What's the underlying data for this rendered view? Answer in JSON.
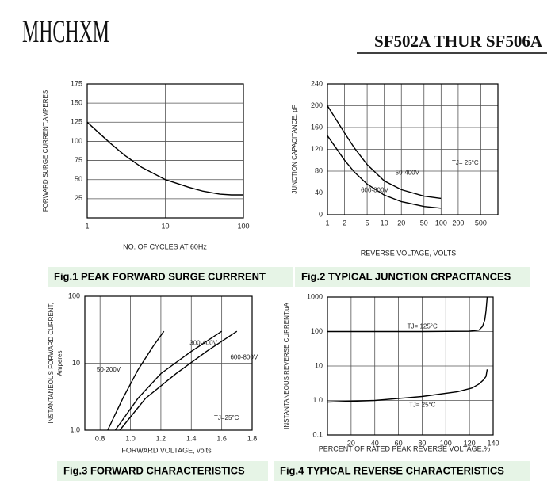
{
  "header": {
    "brand": "MHCHXM",
    "part": "SF502A THUR SF506A"
  },
  "chart_data": [
    {
      "type": "line",
      "title": "Fig.1 PEAK FORWARD SURGE CURRRENT",
      "xlabel": "NO. OF CYCLES AT 60Hz",
      "ylabel": [
        "FORWARD SURGE CURRENT,AMPERES"
      ],
      "xscale": "log",
      "yscale": "linear",
      "xlim": [
        1,
        100
      ],
      "ylim": [
        0,
        175
      ],
      "xticks": [
        1,
        10,
        100
      ],
      "yticks": [
        25,
        50,
        75,
        100,
        125,
        150,
        175
      ],
      "grid": true,
      "series": [
        {
          "x": [
            1,
            2,
            3,
            5,
            10,
            20,
            30,
            50,
            70,
            100
          ],
          "values": [
            125,
            97,
            82,
            66,
            50,
            40,
            35,
            31,
            30,
            30
          ],
          "color": "#000000"
        }
      ]
    },
    {
      "type": "line",
      "title": "Fig.2 TYPICAL JUNCTION CRPACITANCES",
      "xlabel": "REVERSE VOLTAGE, VOLTS",
      "ylabel": [
        "JUNCTION CAPACITANCE, pF"
      ],
      "xscale": "log",
      "yscale": "linear",
      "xlim": [
        1,
        1000
      ],
      "ylim": [
        0,
        240
      ],
      "xticks": [
        1,
        2,
        5,
        10,
        20,
        50,
        100,
        200,
        500
      ],
      "yticks": [
        0,
        40,
        80,
        120,
        160,
        200,
        240
      ],
      "grid": true,
      "annotations": [
        "TJ= 25°C"
      ],
      "series": [
        {
          "name": "50-400V",
          "x": [
            1,
            2,
            3,
            5,
            10,
            20,
            50,
            100
          ],
          "values": [
            200,
            150,
            122,
            92,
            62,
            46,
            34,
            30
          ],
          "color": "#000000"
        },
        {
          "name": "600-800V",
          "x": [
            1,
            2,
            3,
            5,
            10,
            20,
            50,
            100
          ],
          "values": [
            145,
            100,
            78,
            56,
            36,
            24,
            15,
            12
          ],
          "color": "#000000"
        }
      ]
    },
    {
      "type": "line",
      "title": "Fig.3 FORWARD  CHARACTERISTICS",
      "xlabel": "FORWARD VOLTAGE, volts",
      "ylabel": [
        "INSTANTANEOUS FORWARD CURRENT,",
        "Amperes"
      ],
      "xscale": "linear",
      "yscale": "log",
      "xlim": [
        0.7,
        1.8
      ],
      "ylim": [
        1,
        100
      ],
      "xticks": [
        0.8,
        {
          "value": 1,
          "label": "1.0"
        },
        1.2,
        1.4,
        1.6,
        1.8
      ],
      "yticks": [
        {
          "value": 1,
          "label": "1.0"
        },
        10,
        100
      ],
      "grid": true,
      "annotations": [
        "TJ=25°C"
      ],
      "series": [
        {
          "name": "50-200V",
          "x": [
            0.85,
            0.95,
            1.05,
            1.15,
            1.22
          ],
          "values": [
            1,
            3,
            8,
            18,
            30
          ],
          "color": "#000000"
        },
        {
          "name": "300-400V",
          "x": [
            0.9,
            1.05,
            1.2,
            1.4,
            1.6
          ],
          "values": [
            1,
            3,
            7,
            15,
            30
          ],
          "color": "#000000"
        },
        {
          "name": "600-800V",
          "x": [
            0.93,
            1.1,
            1.3,
            1.5,
            1.7
          ],
          "values": [
            1,
            3,
            7,
            15,
            30
          ],
          "color": "#000000"
        }
      ]
    },
    {
      "type": "line",
      "title": "Fig.4 TYPICAL REVERSE CHARACTERISTICS",
      "xlabel": "PERCENT OF RATED PEAK REVERSE VOLTAGE,%",
      "ylabel": [
        "INSTANTANEOUS REVERSE CURRENT,uA"
      ],
      "xscale": "linear",
      "yscale": "log",
      "xlim": [
        0,
        140
      ],
      "ylim": [
        0.1,
        1000
      ],
      "xticks": [
        20,
        40,
        60,
        80,
        100,
        120,
        140
      ],
      "yticks": [
        0.1,
        {
          "value": 1,
          "label": "1.0"
        },
        10,
        100,
        1000
      ],
      "grid": true,
      "series": [
        {
          "name": "TJ= 125°C",
          "x": [
            0,
            40,
            80,
            120,
            128,
            131,
            133,
            134,
            135
          ],
          "values": [
            100,
            100,
            100,
            102,
            110,
            140,
            220,
            400,
            1000
          ],
          "color": "#000000"
        },
        {
          "name": "TJ= 25°C",
          "x": [
            0,
            40,
            80,
            110,
            122,
            128,
            132,
            134,
            135
          ],
          "values": [
            0.9,
            1,
            1.3,
            1.8,
            2.3,
            3,
            4,
            5,
            8
          ],
          "color": "#000000"
        }
      ]
    }
  ]
}
